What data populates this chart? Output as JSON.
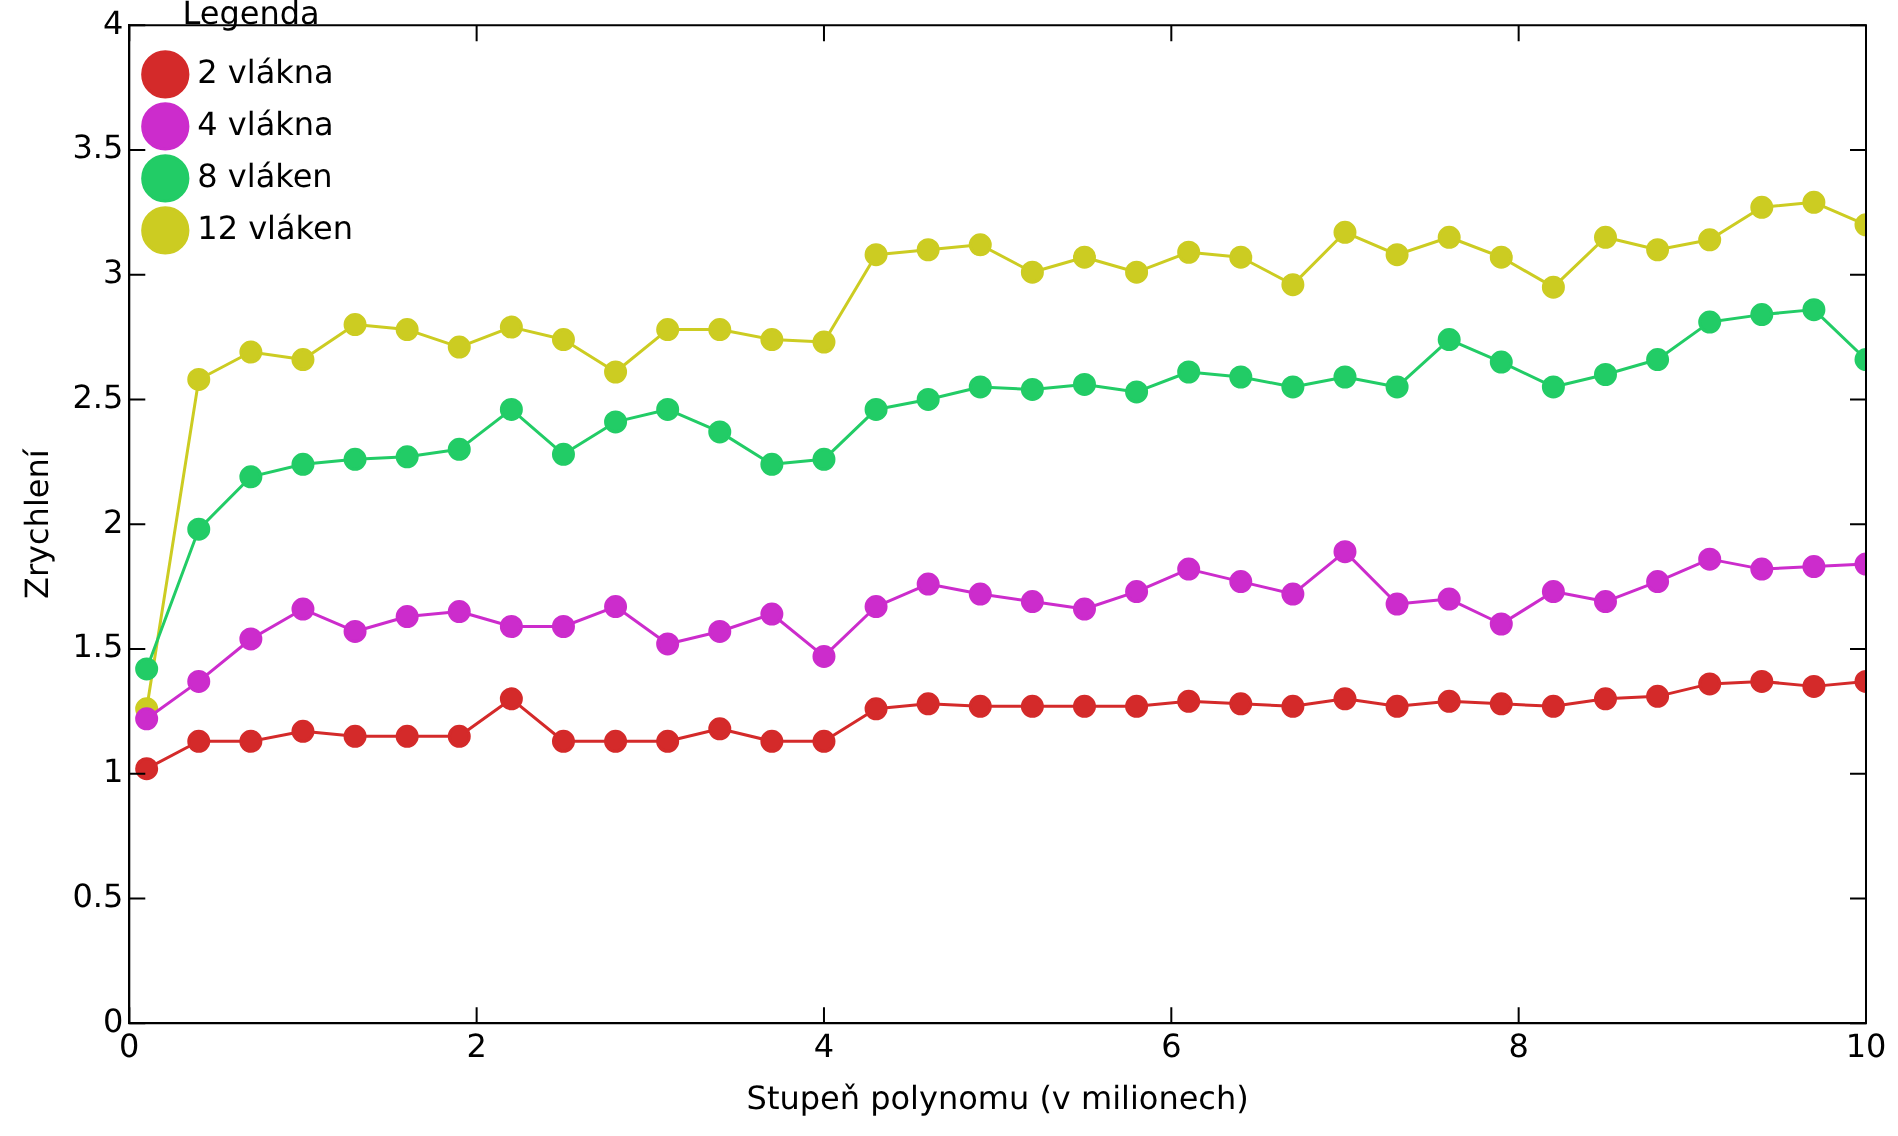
{
  "chart_data": {
    "type": "line",
    "xlabel": "Stupeň polynomu (v milionech)",
    "ylabel": "Zrychlení",
    "legend_title": "Legenda",
    "legend": "top left",
    "grid": false,
    "marker": "circle",
    "line_style": "solid",
    "x": [
      0.1,
      0.4,
      0.7,
      1.0,
      1.3,
      1.6,
      1.9,
      2.2,
      2.5,
      2.8,
      3.1,
      3.4,
      3.7,
      4.0,
      4.3,
      4.6,
      4.9,
      5.2,
      5.5,
      5.8,
      6.1,
      6.4,
      6.7,
      7.0,
      7.3,
      7.6,
      7.9,
      8.2,
      8.5,
      8.8,
      9.1,
      9.4,
      9.7,
      10.0
    ],
    "xlim": [
      0,
      10
    ],
    "xticks": [
      0,
      2,
      4,
      6,
      8,
      10
    ],
    "ylim": [
      0,
      4
    ],
    "yticks": [
      0,
      0.5,
      1,
      1.5,
      2,
      2.5,
      3,
      3.5,
      4
    ],
    "series": [
      {
        "name": "2 vlákna",
        "color": "#d42a2a",
        "values": [
          1.02,
          1.13,
          1.13,
          1.17,
          1.15,
          1.15,
          1.15,
          1.3,
          1.13,
          1.13,
          1.13,
          1.18,
          1.13,
          1.13,
          1.26,
          1.28,
          1.27,
          1.27,
          1.27,
          1.27,
          1.29,
          1.28,
          1.27,
          1.3,
          1.27,
          1.29,
          1.28,
          1.27,
          1.3,
          1.31,
          1.36,
          1.37,
          1.35,
          1.37
        ]
      },
      {
        "name": "4 vlákna",
        "color": "#cc2ccc",
        "values": [
          1.22,
          1.37,
          1.54,
          1.66,
          1.57,
          1.63,
          1.65,
          1.59,
          1.59,
          1.67,
          1.52,
          1.57,
          1.64,
          1.47,
          1.67,
          1.76,
          1.72,
          1.69,
          1.66,
          1.73,
          1.82,
          1.77,
          1.72,
          1.89,
          1.68,
          1.7,
          1.6,
          1.73,
          1.69,
          1.77,
          1.86,
          1.82,
          1.83,
          1.84
        ]
      },
      {
        "name": "8 vláken",
        "color": "#22cc66",
        "values": [
          1.42,
          1.98,
          2.19,
          2.24,
          2.26,
          2.27,
          2.3,
          2.46,
          2.28,
          2.41,
          2.46,
          2.37,
          2.24,
          2.26,
          2.46,
          2.5,
          2.55,
          2.54,
          2.56,
          2.53,
          2.61,
          2.59,
          2.55,
          2.59,
          2.55,
          2.74,
          2.65,
          2.55,
          2.6,
          2.66,
          2.81,
          2.84,
          2.86,
          2.66
        ]
      },
      {
        "name": "12 vláken",
        "color": "#cccc22",
        "values": [
          1.26,
          2.58,
          2.69,
          2.66,
          2.8,
          2.78,
          2.71,
          2.79,
          2.74,
          2.61,
          2.78,
          2.78,
          2.74,
          2.73,
          3.08,
          3.1,
          3.12,
          3.01,
          3.07,
          3.01,
          3.09,
          3.07,
          2.96,
          3.17,
          3.08,
          3.15,
          3.07,
          2.95,
          3.15,
          3.1,
          3.14,
          3.27,
          3.29,
          3.2
        ]
      }
    ]
  }
}
